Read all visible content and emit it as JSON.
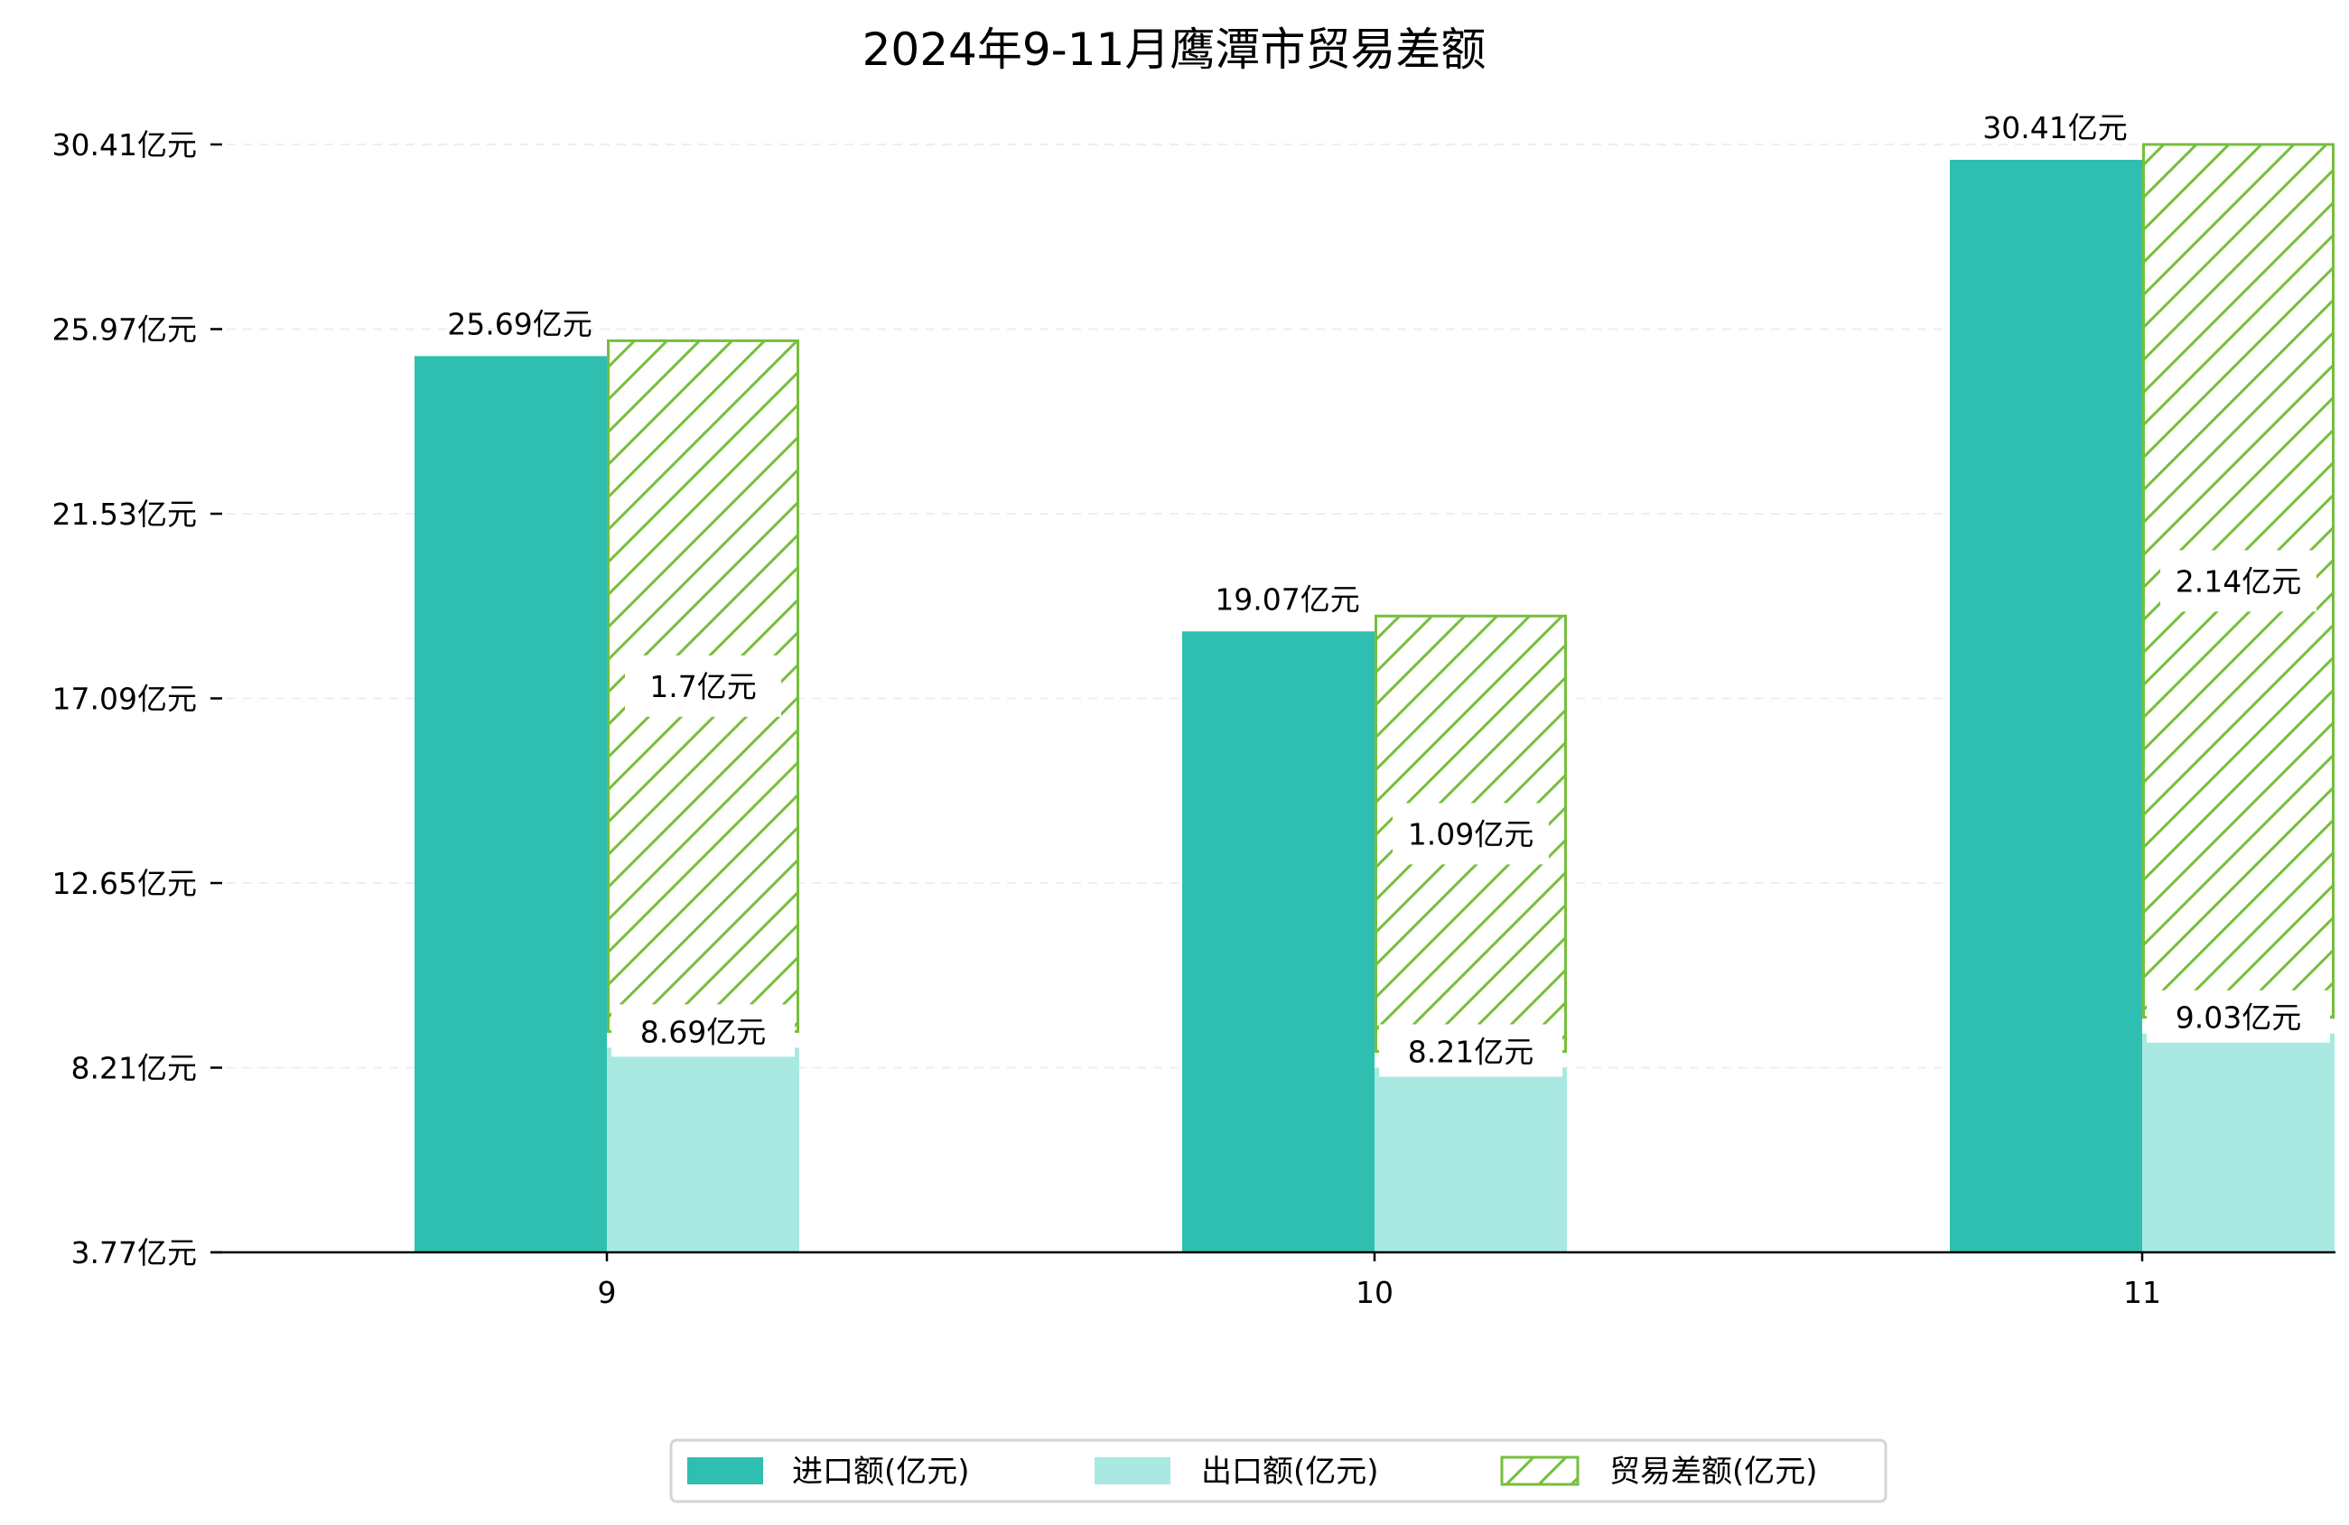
{
  "chart_data": {
    "type": "bar",
    "title": "2024年9-11月鹰潭市贸易差额",
    "categories": [
      "9",
      "10",
      "11"
    ],
    "series": [
      {
        "name": "进口额(亿元)",
        "values": [
          25.69,
          19.07,
          30.41
        ],
        "color": "#2fbfb1"
      },
      {
        "name": "出口额(亿元)",
        "values": [
          8.69,
          8.21,
          9.03
        ],
        "color": "#aae8e2"
      },
      {
        "name": "贸易差额(亿元)",
        "values": [
          1.7,
          1.09,
          2.14
        ],
        "color": "#76bf3c",
        "hatch": true
      }
    ],
    "unit_suffix": "亿元",
    "yticks": [
      "3.77亿元",
      "8.21亿元",
      "12.65亿元",
      "17.09亿元",
      "21.53亿元",
      "25.97亿元",
      "30.41亿元"
    ],
    "ytick_values": [
      3.77,
      8.21,
      12.65,
      17.09,
      21.53,
      25.97,
      30.41
    ],
    "ylim": [
      3.77,
      30.41
    ],
    "xlabel": "",
    "ylabel": "",
    "grid": "y-dashed",
    "legend_position": "bottom-center"
  }
}
